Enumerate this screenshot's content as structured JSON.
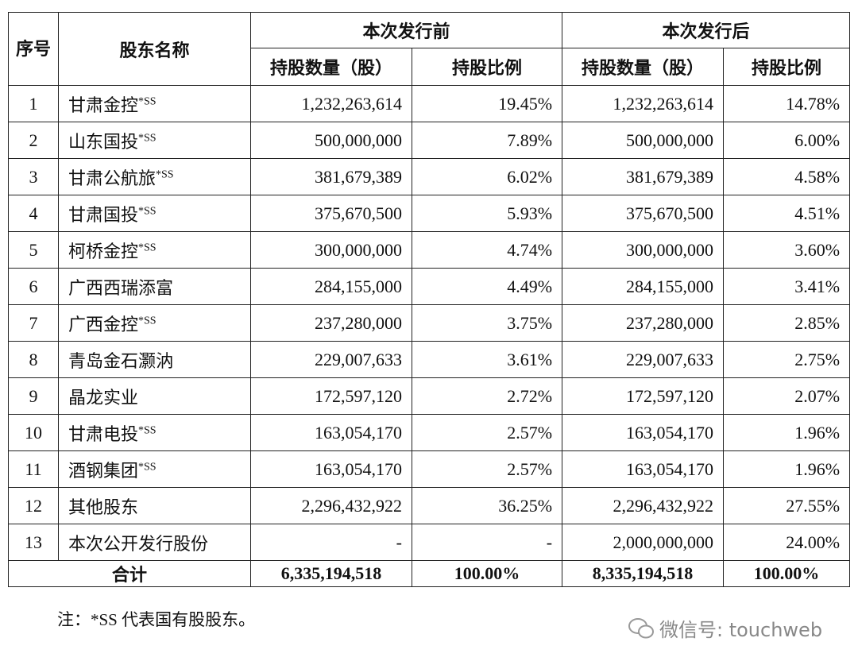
{
  "table": {
    "header": {
      "seq": "序号",
      "name": "股东名称",
      "before": "本次发行前",
      "after": "本次发行后",
      "before_shares": "持股数量（股）",
      "before_pct": "持股比例",
      "after_shares": "持股数量（股）",
      "after_pct": "持股比例"
    },
    "rows": [
      {
        "no": "1",
        "name": "甘肃金控",
        "mark": "*SS",
        "before_shares": "1,232,263,614",
        "before_pct": "19.45%",
        "after_shares": "1,232,263,614",
        "after_pct": "14.78%"
      },
      {
        "no": "2",
        "name": "山东国投",
        "mark": "*SS",
        "before_shares": "500,000,000",
        "before_pct": "7.89%",
        "after_shares": "500,000,000",
        "after_pct": "6.00%"
      },
      {
        "no": "3",
        "name": "甘肃公航旅",
        "mark": "*SS",
        "before_shares": "381,679,389",
        "before_pct": "6.02%",
        "after_shares": "381,679,389",
        "after_pct": "4.58%"
      },
      {
        "no": "4",
        "name": "甘肃国投",
        "mark": "*SS",
        "before_shares": "375,670,500",
        "before_pct": "5.93%",
        "after_shares": "375,670,500",
        "after_pct": "4.51%"
      },
      {
        "no": "5",
        "name": "柯桥金控",
        "mark": "*SS",
        "before_shares": "300,000,000",
        "before_pct": "4.74%",
        "after_shares": "300,000,000",
        "after_pct": "3.60%"
      },
      {
        "no": "6",
        "name": "广西西瑞添富",
        "before_shares": "284,155,000",
        "before_pct": "4.49%",
        "after_shares": "284,155,000",
        "after_pct": "3.41%"
      },
      {
        "no": "7",
        "name": "广西金控",
        "mark": "*SS",
        "before_shares": "237,280,000",
        "before_pct": "3.75%",
        "after_shares": "237,280,000",
        "after_pct": "2.85%"
      },
      {
        "no": "8",
        "name": "青岛金石灏汭",
        "before_shares": "229,007,633",
        "before_pct": "3.61%",
        "after_shares": "229,007,633",
        "after_pct": "2.75%"
      },
      {
        "no": "9",
        "name": "晶龙实业",
        "before_shares": "172,597,120",
        "before_pct": "2.72%",
        "after_shares": "172,597,120",
        "after_pct": "2.07%"
      },
      {
        "no": "10",
        "name": "甘肃电投",
        "mark": "*SS",
        "before_shares": "163,054,170",
        "before_pct": "2.57%",
        "after_shares": "163,054,170",
        "after_pct": "1.96%"
      },
      {
        "no": "11",
        "name": "酒钢集团",
        "mark": "*SS",
        "before_shares": "163,054,170",
        "before_pct": "2.57%",
        "after_shares": "163,054,170",
        "after_pct": "1.96%"
      },
      {
        "no": "12",
        "name": "其他股东",
        "before_shares": "2,296,432,922",
        "before_pct": "36.25%",
        "after_shares": "2,296,432,922",
        "after_pct": "27.55%"
      },
      {
        "no": "13",
        "name": "本次公开发行股份",
        "before_shares": "-",
        "before_pct": "-",
        "after_shares": "2,000,000,000",
        "after_pct": "24.00%"
      }
    ],
    "total": {
      "label": "合计",
      "before_shares": "6,335,194,518",
      "before_pct": "100.00%",
      "after_shares": "8,335,194,518",
      "after_pct": "100.00%"
    }
  },
  "note": "注：*SS 代表国有股股东。",
  "watermark": "微信号: touchweb"
}
